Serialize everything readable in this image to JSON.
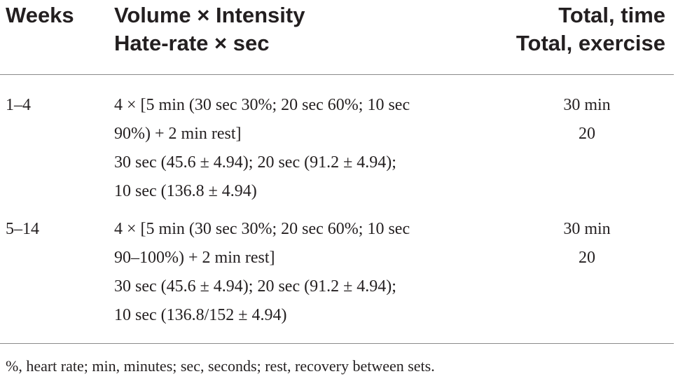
{
  "header": {
    "weeks": "Weeks",
    "volume_line1": "Volume × Intensity",
    "volume_line2": "Hate-rate × sec",
    "total_line1": "Total, time",
    "total_line2": "Total, exercise"
  },
  "rows": [
    {
      "weeks": "1–4",
      "volume_lines": [
        "4 × [5 min (30 sec 30%; 20 sec 60%; 10 sec",
        "90%) + 2 min rest]",
        "30 sec (45.6 ± 4.94); 20 sec (91.2 ± 4.94);",
        "10 sec (136.8 ± 4.94)"
      ],
      "total_time": "30 min",
      "total_exercise": "20"
    },
    {
      "weeks": "5–14",
      "volume_lines": [
        "4 × [5 min (30 sec 30%; 20 sec 60%; 10 sec",
        "90–100%) + 2 min rest]",
        "30 sec (45.6 ± 4.94); 20 sec (91.2 ± 4.94);",
        "10 sec (136.8/152 ± 4.94)"
      ],
      "total_time": "30 min",
      "total_exercise": "20"
    }
  ],
  "footnote": "%, heart rate; min, minutes; sec, seconds; rest, recovery between sets."
}
